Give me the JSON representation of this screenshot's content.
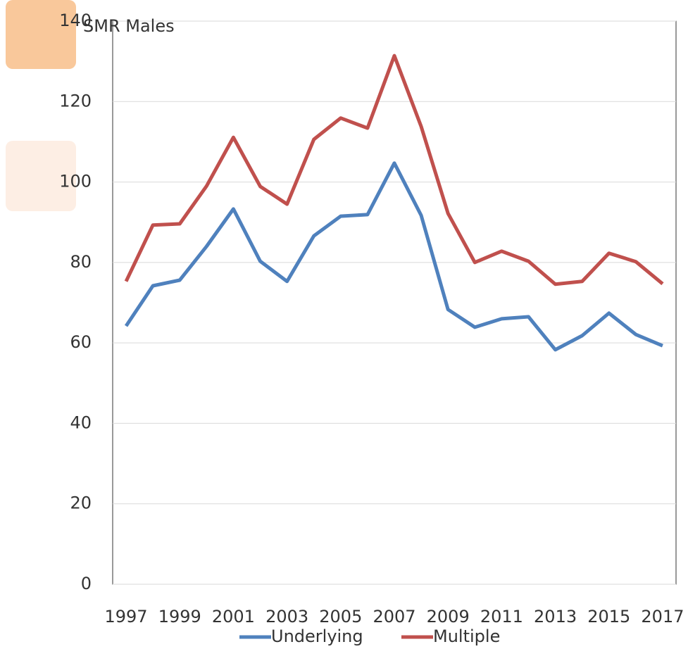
{
  "chart_data": {
    "type": "line",
    "title": "SMR Males",
    "x": [
      1997,
      1998,
      1999,
      2000,
      2001,
      2002,
      2003,
      2004,
      2005,
      2006,
      2007,
      2008,
      2009,
      2010,
      2011,
      2012,
      2013,
      2014,
      2015,
      2016,
      2017
    ],
    "xlim": [
      1996.5,
      2017.5
    ],
    "xticks": [
      1997,
      1999,
      2001,
      2003,
      2005,
      2007,
      2009,
      2011,
      2013,
      2015,
      2017
    ],
    "ylim": [
      0,
      140
    ],
    "yticks": [
      0,
      20,
      40,
      60,
      80,
      100,
      120,
      140
    ],
    "grid": true,
    "legend": "bottom",
    "series": [
      {
        "name": "Underlying",
        "color": "#4f81bd",
        "values": [
          64.2,
          74.2,
          75.6,
          84,
          93.3,
          80.3,
          75.3,
          86.6,
          91.5,
          91.9,
          104.7,
          91.7,
          68.3,
          63.9,
          66,
          66.5,
          58.3,
          61.8,
          67.4,
          62.1,
          59.3
        ]
      },
      {
        "name": "Multiple",
        "color": "#c0504d",
        "values": [
          75.3,
          89.3,
          89.6,
          99,
          111.1,
          98.9,
          94.5,
          110.6,
          115.9,
          113.4,
          131.4,
          113.8,
          92.2,
          80,
          82.8,
          80.3,
          74.6,
          75.3,
          82.3,
          80.2,
          74.7
        ]
      }
    ]
  }
}
